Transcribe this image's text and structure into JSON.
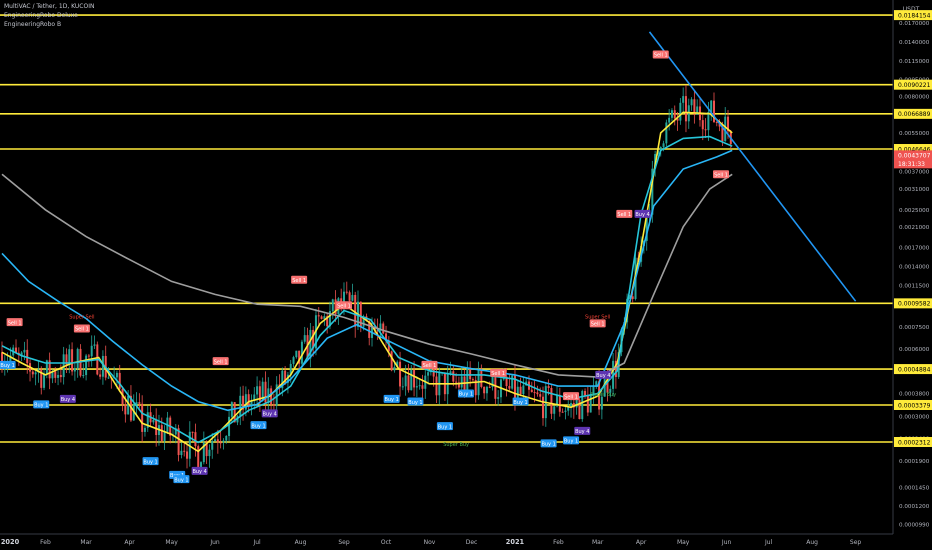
{
  "header": {
    "symbol_line": "MultiVAC / Tether, 1D, KUCOIN",
    "indicator_1": "EngineeringRobo Deluxe",
    "indicator_2": "EngineeringRobo B"
  },
  "currency": "USDT",
  "chart_data": {
    "type": "line",
    "title": "MultiVAC / Tether, 1D, KUCOIN",
    "y_scale": "log",
    "ylim": [
      9e-05,
      0.0215
    ],
    "x_ticks": [
      "2020",
      "Feb",
      "Mar",
      "Apr",
      "May",
      "Jun",
      "Jul",
      "Aug",
      "Sep",
      "Oct",
      "Nov",
      "Dec",
      "2021",
      "Feb",
      "Mar",
      "Apr",
      "May",
      "Jun",
      "Jul",
      "Aug",
      "Sep"
    ],
    "y_ticks": [
      "0.0170000",
      "0.0140000",
      "0.0115000",
      "0.0095000",
      "0.0080000",
      "0.0065000",
      "0.0055000",
      "0.0045000",
      "0.0037000",
      "0.0031000",
      "0.0025000",
      "0.0021000",
      "0.0017000",
      "0.0014000",
      "0.0011500",
      "0.0009500",
      "0.0007500",
      "0.0006000",
      "0.0004800",
      "0.0003800",
      "0.0003000",
      "0.0002400",
      "0.0001900",
      "0.0001450",
      "0.0001200",
      "0.0000990"
    ],
    "horizontal_levels": [
      "0.0184154",
      "0.0090221",
      "0.0066889",
      "0.0046646",
      "0.0009582",
      "0.0004884",
      "0.0003379",
      "0.0002312"
    ],
    "last_price": "0.0043707",
    "countdown": "18:31:33",
    "series": [
      {
        "color": "#ffeb3b",
        "x": [
          "2020-01-01",
          "2020-01-15",
          "2020-02-01",
          "2020-02-20",
          "2020-03-10",
          "2020-03-25",
          "2020-04-10",
          "2020-05-01",
          "2020-05-20",
          "2020-06-05",
          "2020-06-25",
          "2020-07-10",
          "2020-07-25",
          "2020-08-15",
          "2020-09-01",
          "2020-09-20",
          "2020-10-10",
          "2020-11-01",
          "2020-11-20",
          "2020-12-10",
          "2021-01-01",
          "2021-01-20",
          "2021-02-10",
          "2021-03-01",
          "2021-03-15",
          "2021-04-01",
          "2021-04-15",
          "2021-05-01",
          "2021-05-20",
          "2021-06-05"
        ],
        "values": [
          0.00058,
          0.00052,
          0.00046,
          0.00052,
          0.00055,
          0.00039,
          0.00028,
          0.00025,
          0.00021,
          0.00026,
          0.00035,
          0.00037,
          0.00046,
          0.00078,
          0.00095,
          0.00078,
          0.00049,
          0.00042,
          0.00042,
          0.00043,
          0.00038,
          0.00035,
          0.00033,
          0.00037,
          0.00052,
          0.0017,
          0.0055,
          0.0068,
          0.0067,
          0.0055
        ]
      },
      {
        "color": "#26c6da",
        "x": [
          "2020-01-01",
          "2020-01-15",
          "2020-02-01",
          "2020-02-20",
          "2020-03-10",
          "2020-03-25",
          "2020-04-10",
          "2020-05-01",
          "2020-05-20",
          "2020-06-05",
          "2020-06-25",
          "2020-07-10",
          "2020-07-25",
          "2020-08-15",
          "2020-09-01",
          "2020-09-20",
          "2020-10-10",
          "2020-11-01",
          "2020-11-20",
          "2020-12-10",
          "2021-01-01",
          "2021-01-20",
          "2021-02-10",
          "2021-03-01",
          "2021-03-15",
          "2021-04-01",
          "2021-04-15",
          "2021-05-01",
          "2021-05-20",
          "2021-06-05"
        ],
        "values": [
          0.00062,
          0.00056,
          0.00052,
          0.00052,
          0.00054,
          0.00042,
          0.00031,
          0.00027,
          0.00023,
          0.00026,
          0.00032,
          0.00035,
          0.00041,
          0.00069,
          0.00089,
          0.00081,
          0.00055,
          0.00048,
          0.00046,
          0.00046,
          0.00044,
          0.00039,
          0.00036,
          0.00038,
          0.00048,
          0.0024,
          0.0046,
          0.0052,
          0.0053,
          0.0048
        ]
      },
      {
        "color": "#29b6f6",
        "x": [
          "2020-01-01",
          "2020-01-20",
          "2020-02-10",
          "2020-03-01",
          "2020-03-20",
          "2020-04-10",
          "2020-05-01",
          "2020-05-20",
          "2020-06-10",
          "2020-07-01",
          "2020-07-25",
          "2020-08-20",
          "2020-09-10",
          "2020-10-01",
          "2020-11-01",
          "2020-12-01",
          "2021-01-01",
          "2021-02-01",
          "2021-03-01",
          "2021-03-20",
          "2021-04-10",
          "2021-05-01",
          "2021-05-25",
          "2021-06-05"
        ],
        "values": [
          0.0016,
          0.0012,
          0.00098,
          0.00082,
          0.00065,
          0.00051,
          0.00041,
          0.00035,
          0.00032,
          0.00034,
          0.00044,
          0.00067,
          0.00077,
          0.00066,
          0.00053,
          0.00049,
          0.00046,
          0.00041,
          0.00041,
          0.00078,
          0.0026,
          0.0038,
          0.0043,
          0.0046
        ]
      },
      {
        "color": "#9e9e9e",
        "x": [
          "2020-01-01",
          "2020-02-01",
          "2020-03-01",
          "2020-04-01",
          "2020-05-01",
          "2020-06-01",
          "2020-07-01",
          "2020-08-01",
          "2020-09-01",
          "2020-10-01",
          "2020-11-01",
          "2020-12-01",
          "2021-01-01",
          "2021-02-01",
          "2021-03-01",
          "2021-03-20",
          "2021-04-10",
          "2021-05-01",
          "2021-05-20",
          "2021-06-05"
        ],
        "values": [
          0.0036,
          0.0025,
          0.0019,
          0.0015,
          0.0012,
          0.00105,
          0.00095,
          0.00093,
          0.00083,
          0.00072,
          0.00063,
          0.00057,
          0.00051,
          0.00046,
          0.00045,
          0.00052,
          0.00105,
          0.0021,
          0.0031,
          0.0036
        ]
      },
      {
        "color": "#2196f3",
        "x": [
          "2021-04-07",
          "2021-09-01"
        ],
        "values": [
          0.0155,
          0.00098
        ]
      }
    ],
    "signals": [
      {
        "label": "Sell 1",
        "kind": "sell",
        "x": "2020-01-10",
        "y": 0.00079
      },
      {
        "label": "Sell 1",
        "kind": "sell",
        "x": "2020-02-27",
        "y": 0.00074
      },
      {
        "label": "Buy 1",
        "kind": "buy",
        "x": "2020-01-05",
        "y": 0.00051
      },
      {
        "label": "Buy 1",
        "kind": "buy",
        "x": "2020-01-29",
        "y": 0.00034
      },
      {
        "label": "Buy 4",
        "kind": "buy4",
        "x": "2020-02-17",
        "y": 0.00036
      },
      {
        "label": "Buy 1",
        "kind": "buy",
        "x": "2020-04-16",
        "y": 0.00019
      },
      {
        "label": "Buy 1",
        "kind": "buy",
        "x": "2020-05-05",
        "y": 0.000165
      },
      {
        "label": "Buy 1",
        "kind": "buy",
        "x": "2020-05-08",
        "y": 0.000158
      },
      {
        "label": "Buy 4",
        "kind": "buy4",
        "x": "2020-05-21",
        "y": 0.000172
      },
      {
        "label": "Sell 1",
        "kind": "sell",
        "x": "2020-06-05",
        "y": 0.00053
      },
      {
        "label": "Buy 4",
        "kind": "buy4",
        "x": "2020-07-10",
        "y": 0.00031
      },
      {
        "label": "Buy 1",
        "kind": "buy",
        "x": "2020-07-02",
        "y": 0.000275
      },
      {
        "label": "Sell 1",
        "kind": "sell",
        "x": "2020-07-31",
        "y": 0.00122
      },
      {
        "label": "Sell 1",
        "kind": "sell",
        "x": "2020-09-01",
        "y": 0.00094
      },
      {
        "label": "Buy 1",
        "kind": "buy",
        "x": "2020-10-05",
        "y": 0.00036
      },
      {
        "label": "Buy 1",
        "kind": "buy",
        "x": "2020-10-22",
        "y": 0.00035
      },
      {
        "label": "Sell 1",
        "kind": "sell",
        "x": "2020-11-01",
        "y": 0.00051
      },
      {
        "label": "Buy 1",
        "kind": "buy",
        "x": "2020-11-12",
        "y": 0.000272
      },
      {
        "label": "Buy 1",
        "kind": "buy",
        "x": "2020-11-27",
        "y": 0.00038
      },
      {
        "label": "Sell 1",
        "kind": "sell",
        "x": "2020-12-20",
        "y": 0.00047
      },
      {
        "label": "Buy 1",
        "kind": "buy",
        "x": "2021-01-05",
        "y": 0.00035
      },
      {
        "label": "Buy 1",
        "kind": "buy",
        "x": "2021-01-25",
        "y": 0.000228
      },
      {
        "label": "Buy 1",
        "kind": "buy",
        "x": "2021-02-10",
        "y": 0.000235
      },
      {
        "label": "Buy 4",
        "kind": "buy4",
        "x": "2021-02-18",
        "y": 0.000259
      },
      {
        "label": "Sell 1",
        "kind": "sell",
        "x": "2021-02-10",
        "y": 0.00037
      },
      {
        "label": "Sell 1",
        "kind": "sell",
        "x": "2021-03-01",
        "y": 0.00078
      },
      {
        "label": "Buy 4",
        "kind": "buy4",
        "x": "2021-03-05",
        "y": 0.00046
      },
      {
        "label": "Sell 1",
        "kind": "sell",
        "x": "2021-03-20",
        "y": 0.0024
      },
      {
        "label": "Buy 4",
        "kind": "buy4",
        "x": "2021-04-02",
        "y": 0.0024
      },
      {
        "label": "Sell 1",
        "kind": "sell",
        "x": "2021-04-15",
        "y": 0.0123
      },
      {
        "label": "Sell 1",
        "kind": "sell",
        "x": "2021-05-28",
        "y": 0.0036
      }
    ],
    "text_annotations": [
      {
        "label": "Super Sell",
        "x": "2020-02-27",
        "y": 0.00082,
        "color": "#f44336"
      },
      {
        "label": "Super Sell",
        "x": "2021-03-01",
        "y": 0.00082,
        "color": "#f44336"
      },
      {
        "label": "Super Buy",
        "x": "2020-11-20",
        "y": 0.000222,
        "color": "#4caf50"
      },
      {
        "label": "Super Buy",
        "x": "2021-03-05",
        "y": 0.00037,
        "color": "#4caf50"
      }
    ]
  }
}
